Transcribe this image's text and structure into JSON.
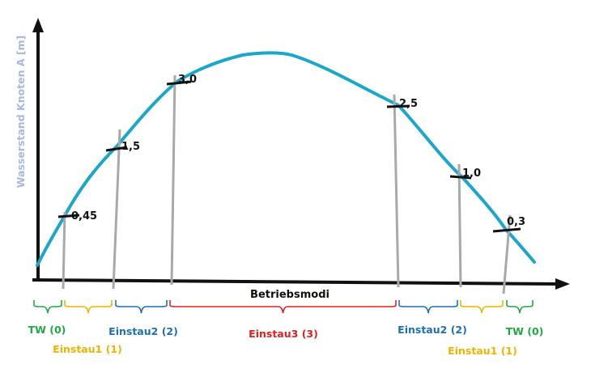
{
  "chart_data": {
    "type": "line",
    "xlabel": "Betriebsmodi",
    "ylabel": "Wasserstand Knoten A [m]",
    "curve_color": "#1aa7c9",
    "markers": [
      {
        "label": "0,45",
        "value": 0.45
      },
      {
        "label": "1,5",
        "value": 1.5
      },
      {
        "label": "3,0",
        "value": 3.0
      },
      {
        "label": "2,5",
        "value": 2.5
      },
      {
        "label": "1,0",
        "value": 1.0
      },
      {
        "label": "0,3",
        "value": 0.3
      }
    ],
    "modes": [
      {
        "label": "TW (0)",
        "color": "#22a845"
      },
      {
        "label": "Einstau1 (1)",
        "color": "#f0b400"
      },
      {
        "label": "Einstau2 (2)",
        "color": "#1f6fb5"
      },
      {
        "label": "Einstau3 (3)",
        "color": "#e02020"
      },
      {
        "label": "Einstau2 (2)",
        "color": "#1f6fb5"
      },
      {
        "label": "Einstau1 (1)",
        "color": "#f0b400"
      },
      {
        "label": "TW (0)",
        "color": "#22a845"
      }
    ]
  }
}
